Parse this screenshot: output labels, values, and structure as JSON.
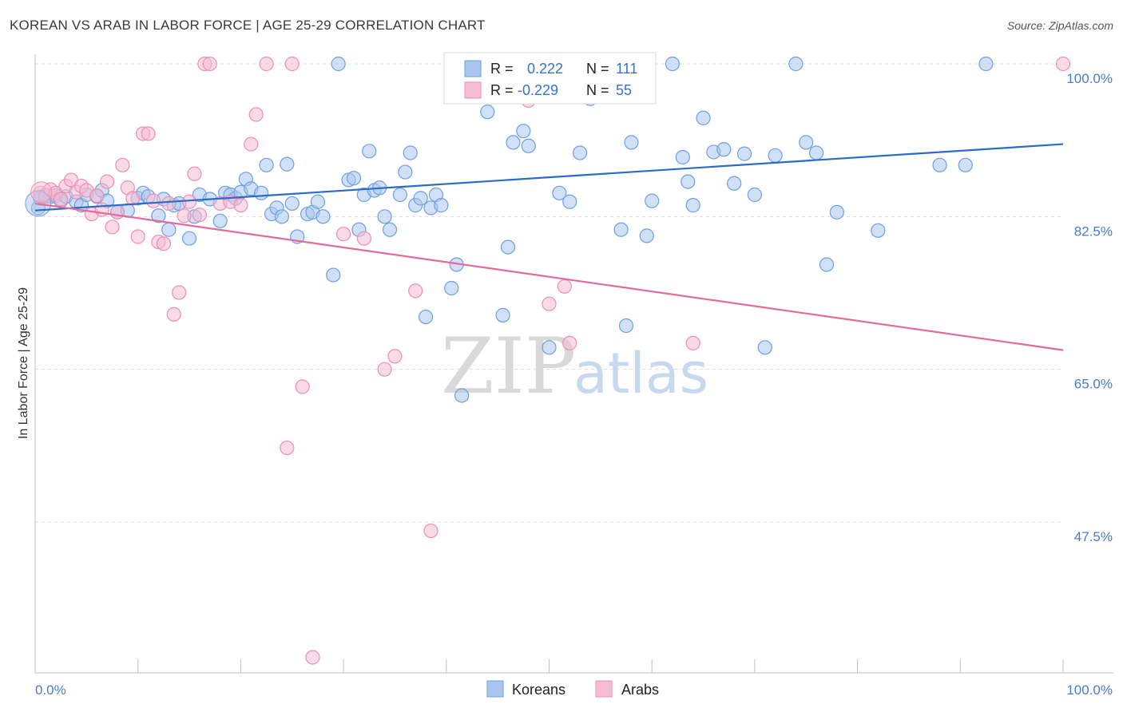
{
  "title": "KOREAN VS ARAB IN LABOR FORCE | AGE 25-29 CORRELATION CHART",
  "source": "Source: ZipAtlas.com",
  "colors": {
    "korean_fill": "#a9c6ef",
    "korean_stroke": "#6f9fe0",
    "korean_line": "#2b6cc9",
    "arab_fill": "#f6bcd1",
    "arab_stroke": "#ec8fb1",
    "arab_line": "#e36a9a",
    "tick_label": "#4a7cc4",
    "grid": "#dddddd"
  },
  "legend": {
    "korean": {
      "r_label": "R =",
      "r_value": "0.222",
      "n_label": "N =",
      "n_value": "111"
    },
    "arab": {
      "r_label": "R =",
      "r_value": "-0.229",
      "n_label": "N =",
      "n_value": "55"
    }
  },
  "watermark": {
    "zip": "ZIP",
    "atlas": "atlas"
  },
  "chart_data": {
    "type": "scatter",
    "title": "KOREAN VS ARAB IN LABOR FORCE | AGE 25-29 CORRELATION CHART",
    "xlabel": "",
    "ylabel": "In Labor Force | Age 25-29",
    "xlim": [
      0,
      100
    ],
    "ylim": [
      29,
      101
    ],
    "x_tick_labels": [
      "0.0%",
      "100.0%"
    ],
    "y_ticks": [
      47.5,
      65.0,
      82.5,
      100.0
    ],
    "y_tick_labels": [
      "47.5%",
      "65.0%",
      "82.5%",
      "100.0%"
    ],
    "grid": true,
    "legend_position": "top-center",
    "series": [
      {
        "name": "Koreans",
        "trend": {
          "x": [
            0,
            100
          ],
          "y": [
            83.2,
            90.8
          ]
        },
        "points": [
          [
            0.3,
            83.5
          ],
          [
            0.5,
            84.6
          ],
          [
            1.0,
            85.0
          ],
          [
            1.5,
            84.8
          ],
          [
            2.0,
            84.9
          ],
          [
            2.5,
            84.3
          ],
          [
            3.0,
            84.8
          ],
          [
            4.0,
            84.2
          ],
          [
            4.5,
            83.8
          ],
          [
            5.0,
            85.0
          ],
          [
            6.0,
            84.8
          ],
          [
            6.5,
            85.5
          ],
          [
            7.0,
            84.3
          ],
          [
            8.0,
            83.0
          ],
          [
            9.0,
            83.2
          ],
          [
            10.0,
            84.6
          ],
          [
            10.5,
            85.2
          ],
          [
            11.0,
            84.8
          ],
          [
            12.0,
            82.6
          ],
          [
            12.5,
            84.5
          ],
          [
            13.0,
            81.0
          ],
          [
            13.5,
            83.8
          ],
          [
            14.0,
            84.0
          ],
          [
            15.0,
            80.0
          ],
          [
            15.5,
            82.5
          ],
          [
            16.0,
            85.0
          ],
          [
            17.0,
            84.5
          ],
          [
            18.0,
            82.0
          ],
          [
            18.5,
            85.2
          ],
          [
            19.0,
            85.0
          ],
          [
            19.5,
            84.6
          ],
          [
            20.0,
            85.3
          ],
          [
            20.5,
            86.8
          ],
          [
            21.0,
            85.7
          ],
          [
            22.0,
            85.2
          ],
          [
            22.5,
            88.4
          ],
          [
            23.0,
            82.8
          ],
          [
            23.5,
            83.5
          ],
          [
            24.0,
            82.5
          ],
          [
            24.5,
            88.5
          ],
          [
            25.0,
            84.0
          ],
          [
            25.5,
            80.2
          ],
          [
            26.5,
            82.8
          ],
          [
            27.0,
            83.0
          ],
          [
            27.5,
            84.2
          ],
          [
            28.0,
            82.5
          ],
          [
            29.0,
            75.8
          ],
          [
            29.5,
            100.0
          ],
          [
            30.5,
            86.7
          ],
          [
            31.0,
            86.9
          ],
          [
            31.5,
            81.0
          ],
          [
            32.0,
            85.0
          ],
          [
            32.5,
            90.0
          ],
          [
            33.0,
            85.5
          ],
          [
            33.5,
            85.8
          ],
          [
            34.0,
            82.5
          ],
          [
            34.5,
            81.0
          ],
          [
            35.5,
            85.0
          ],
          [
            36.0,
            87.6
          ],
          [
            36.5,
            89.8
          ],
          [
            37.0,
            83.8
          ],
          [
            37.5,
            84.6
          ],
          [
            38.0,
            71.0
          ],
          [
            38.5,
            83.5
          ],
          [
            39.0,
            85.0
          ],
          [
            39.5,
            83.8
          ],
          [
            40.5,
            74.3
          ],
          [
            41.0,
            77.0
          ],
          [
            41.5,
            62.0
          ],
          [
            42.5,
            100.0
          ],
          [
            43.5,
            100.0
          ],
          [
            44.0,
            94.5
          ],
          [
            45.5,
            71.2
          ],
          [
            46.0,
            79.0
          ],
          [
            46.5,
            91.0
          ],
          [
            47.5,
            92.3
          ],
          [
            48.0,
            90.6
          ],
          [
            49.5,
            100.0
          ],
          [
            50.0,
            67.5
          ],
          [
            51.0,
            85.2
          ],
          [
            52.0,
            84.2
          ],
          [
            53.0,
            89.8
          ],
          [
            54.0,
            96.0
          ],
          [
            57.0,
            81.0
          ],
          [
            57.5,
            70.0
          ],
          [
            58.0,
            91.0
          ],
          [
            59.5,
            80.3
          ],
          [
            60.0,
            84.3
          ],
          [
            62.0,
            100.0
          ],
          [
            63.0,
            89.3
          ],
          [
            63.5,
            86.5
          ],
          [
            64.0,
            83.8
          ],
          [
            65.0,
            93.8
          ],
          [
            66.0,
            89.9
          ],
          [
            67.0,
            90.2
          ],
          [
            68.0,
            86.3
          ],
          [
            69.0,
            89.7
          ],
          [
            70.0,
            85.0
          ],
          [
            71.0,
            67.5
          ],
          [
            72.0,
            89.5
          ],
          [
            74.0,
            100.0
          ],
          [
            75.0,
            91.0
          ],
          [
            76.0,
            89.8
          ],
          [
            77.0,
            77.0
          ],
          [
            78.0,
            83.0
          ],
          [
            82.0,
            80.9
          ],
          [
            88.0,
            88.4
          ],
          [
            90.5,
            88.4
          ],
          [
            92.5,
            100.0
          ]
        ]
      },
      {
        "name": "Arabs",
        "trend": {
          "x": [
            0,
            100
          ],
          "y": [
            84.0,
            67.2
          ]
        },
        "points": [
          [
            0.5,
            85.2
          ],
          [
            1.0,
            84.8
          ],
          [
            1.5,
            85.6
          ],
          [
            2.0,
            85.2
          ],
          [
            2.5,
            84.5
          ],
          [
            3.0,
            86.0
          ],
          [
            3.5,
            86.7
          ],
          [
            4.0,
            85.3
          ],
          [
            4.5,
            86.0
          ],
          [
            5.0,
            85.5
          ],
          [
            5.5,
            82.8
          ],
          [
            6.0,
            84.9
          ],
          [
            6.5,
            83.3
          ],
          [
            7.0,
            86.5
          ],
          [
            7.5,
            81.3
          ],
          [
            8.0,
            83.0
          ],
          [
            8.5,
            88.4
          ],
          [
            9.0,
            85.8
          ],
          [
            9.5,
            84.6
          ],
          [
            10.0,
            80.2
          ],
          [
            10.5,
            92.0
          ],
          [
            11.0,
            92.0
          ],
          [
            11.5,
            84.3
          ],
          [
            12.0,
            79.6
          ],
          [
            12.5,
            79.4
          ],
          [
            13.0,
            84.0
          ],
          [
            13.5,
            71.3
          ],
          [
            14.0,
            73.8
          ],
          [
            14.5,
            82.6
          ],
          [
            15.0,
            84.2
          ],
          [
            15.5,
            87.4
          ],
          [
            16.0,
            82.7
          ],
          [
            16.5,
            100.0
          ],
          [
            17.0,
            100.0
          ],
          [
            18.0,
            84.0
          ],
          [
            19.0,
            84.2
          ],
          [
            20.0,
            83.8
          ],
          [
            21.0,
            90.8
          ],
          [
            21.5,
            94.2
          ],
          [
            22.5,
            100.0
          ],
          [
            24.5,
            56.0
          ],
          [
            25.0,
            100.0
          ],
          [
            26.0,
            63.0
          ],
          [
            27.0,
            32.0
          ],
          [
            30.0,
            80.5
          ],
          [
            32.0,
            80.0
          ],
          [
            34.0,
            65.0
          ],
          [
            35.0,
            66.5
          ],
          [
            37.0,
            74.0
          ],
          [
            38.5,
            46.5
          ],
          [
            45.0,
            100.0
          ],
          [
            48.0,
            95.8
          ],
          [
            50.0,
            72.5
          ],
          [
            51.5,
            74.5
          ],
          [
            52.0,
            68.0
          ],
          [
            64.0,
            68.0
          ],
          [
            100.0,
            100.0
          ]
        ]
      }
    ]
  },
  "bottom_legend": [
    {
      "label": "Koreans",
      "series": "Koreans"
    },
    {
      "label": "Arabs",
      "series": "Arabs"
    }
  ]
}
